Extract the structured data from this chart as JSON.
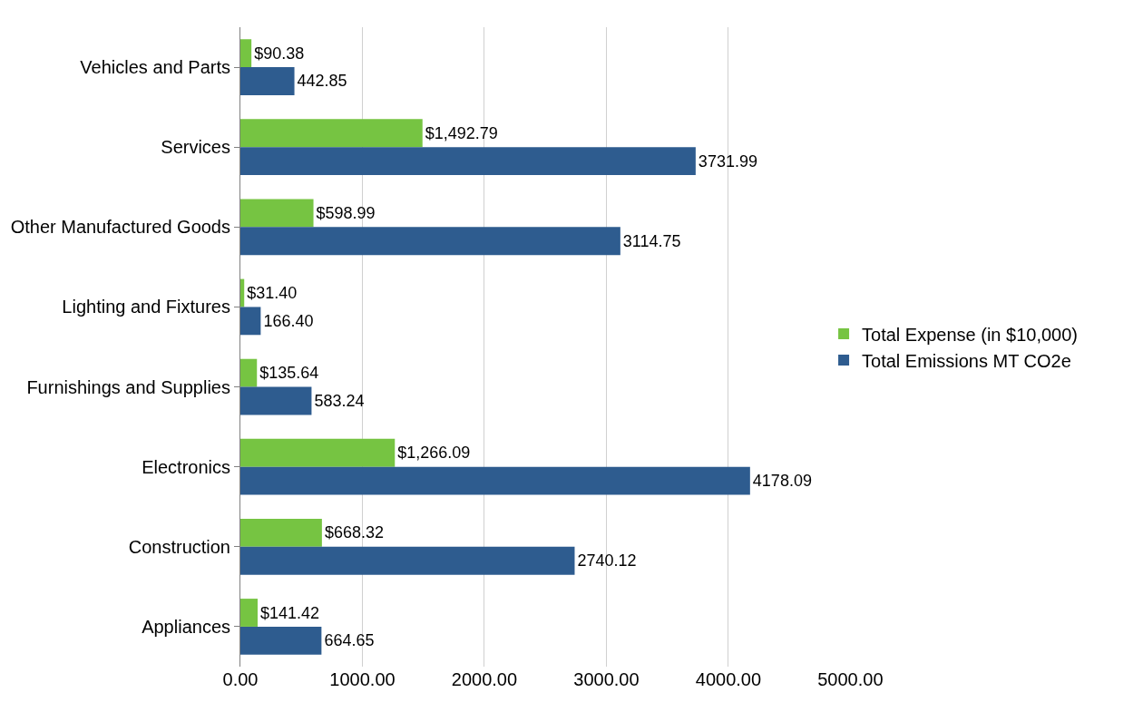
{
  "chart_data": {
    "type": "bar",
    "orientation": "horizontal",
    "categories": [
      "Vehicles and Parts",
      "Services",
      "Other Manufactured Goods",
      "Lighting and Fixtures",
      "Furnishings and Supplies",
      "Electronics",
      "Construction",
      "Appliances"
    ],
    "series": [
      {
        "name": "Total Expense (in $10,000)",
        "color": "#76c442",
        "values": [
          90.38,
          1492.79,
          598.99,
          31.4,
          135.64,
          1266.09,
          668.32,
          141.42
        ],
        "value_labels": [
          "$90.38",
          "$1,492.79",
          "$598.99",
          "$31.40",
          "$135.64",
          "$1,266.09",
          "$668.32",
          "$141.42"
        ]
      },
      {
        "name": "Total Emissions MT CO2e",
        "color": "#2e5c8f",
        "values": [
          442.85,
          3731.99,
          3114.75,
          166.4,
          583.24,
          4178.09,
          2740.12,
          664.65
        ],
        "value_labels": [
          "442.85",
          "3731.99",
          "3114.75",
          "166.40",
          "583.24",
          "4178.09",
          "2740.12",
          "664.65"
        ]
      }
    ],
    "xlim": [
      0,
      5000
    ],
    "xticks": [
      {
        "value": 0,
        "label": "0.00"
      },
      {
        "value": 1000,
        "label": "1000.00"
      },
      {
        "value": 2000,
        "label": "2000.00"
      },
      {
        "value": 3000,
        "label": "3000.00"
      },
      {
        "value": 4000,
        "label": "4000.00"
      },
      {
        "value": 5000,
        "label": "5000.00"
      }
    ],
    "grid": "x",
    "legend": "right"
  }
}
